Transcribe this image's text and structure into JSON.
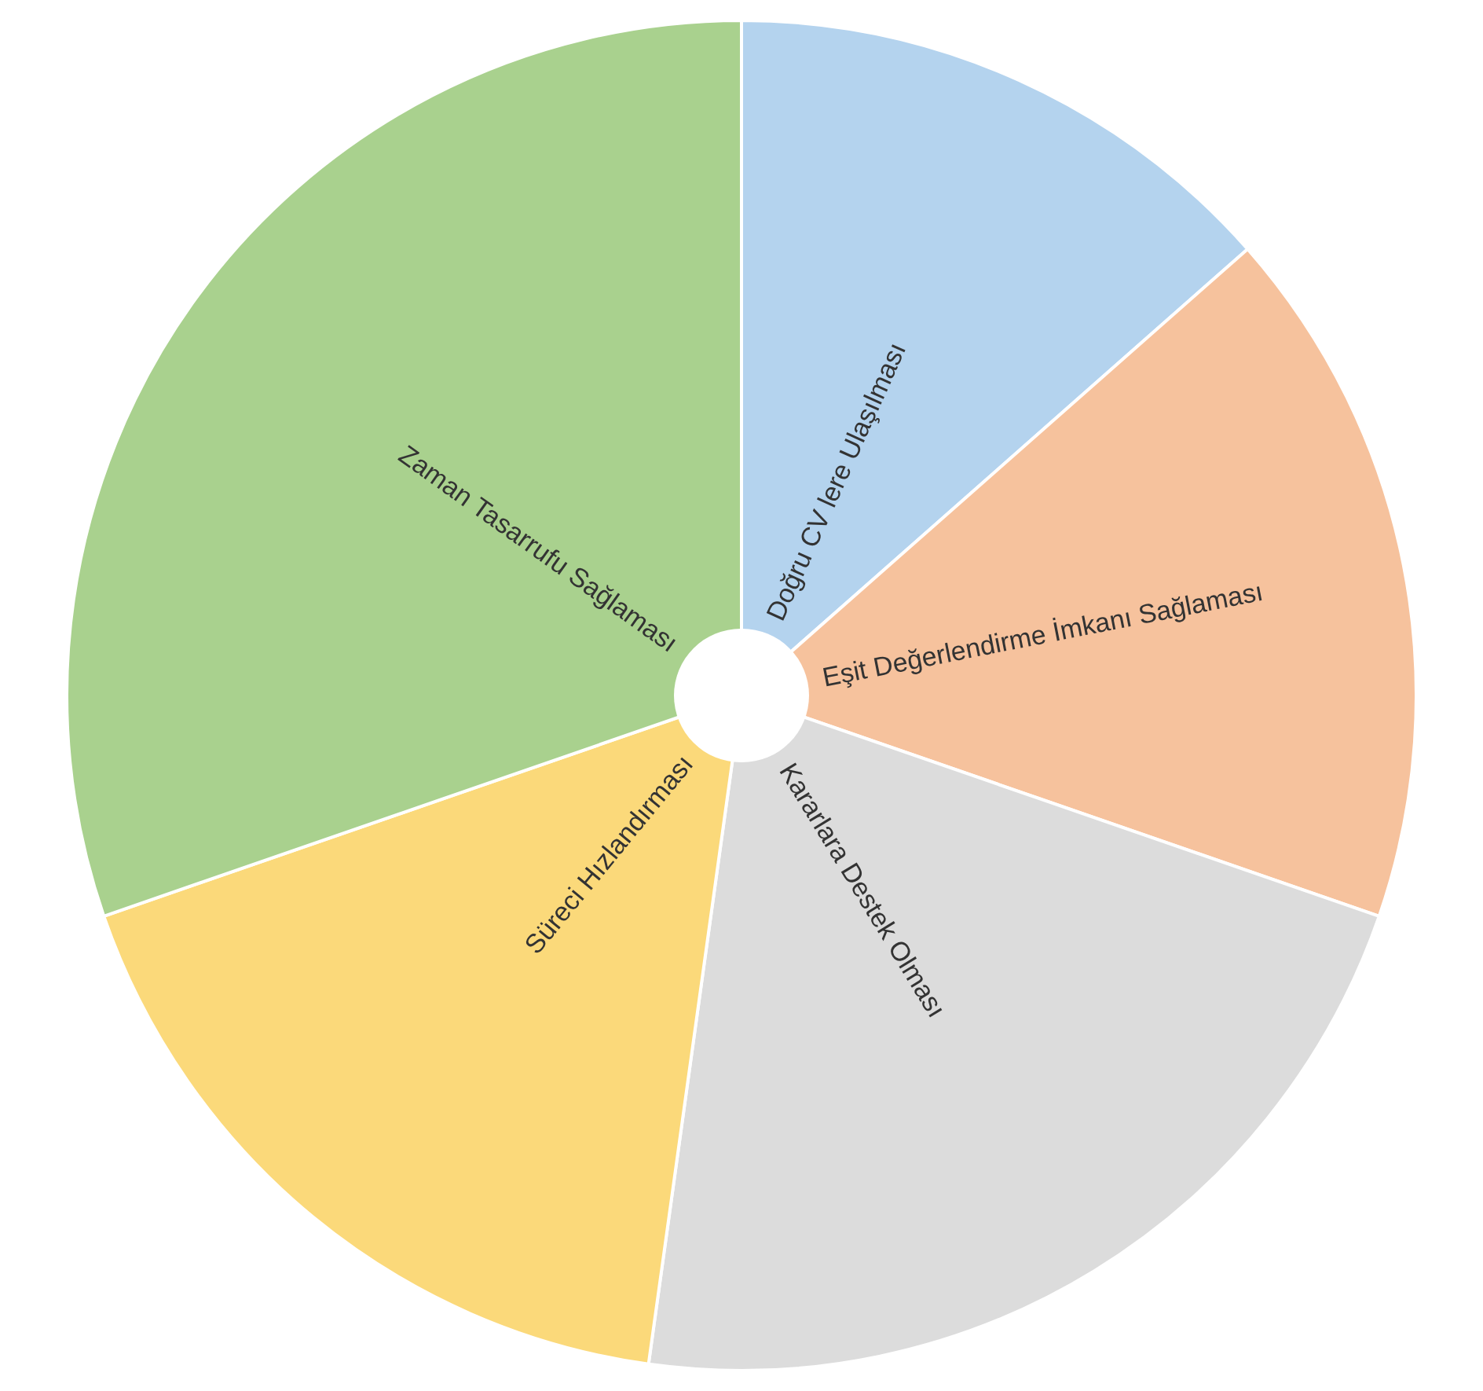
{
  "chart_data": {
    "type": "pie",
    "categories": [
      "Doğru CV lere Ulaşılması",
      "Eşit Değerlendirme İmkanı Sağlaması",
      "Kararlara Destek Olması",
      "Süreci Hızlandırması",
      "Zaman Tasarrufu Sağlaması"
    ],
    "values": [
      13.5,
      16.8,
      21.9,
      17.5,
      30.3
    ],
    "colors": [
      "#b4d3ee",
      "#f6c29d",
      "#dcdcdc",
      "#fbd97a",
      "#a9d18e"
    ],
    "legend": false
  }
}
